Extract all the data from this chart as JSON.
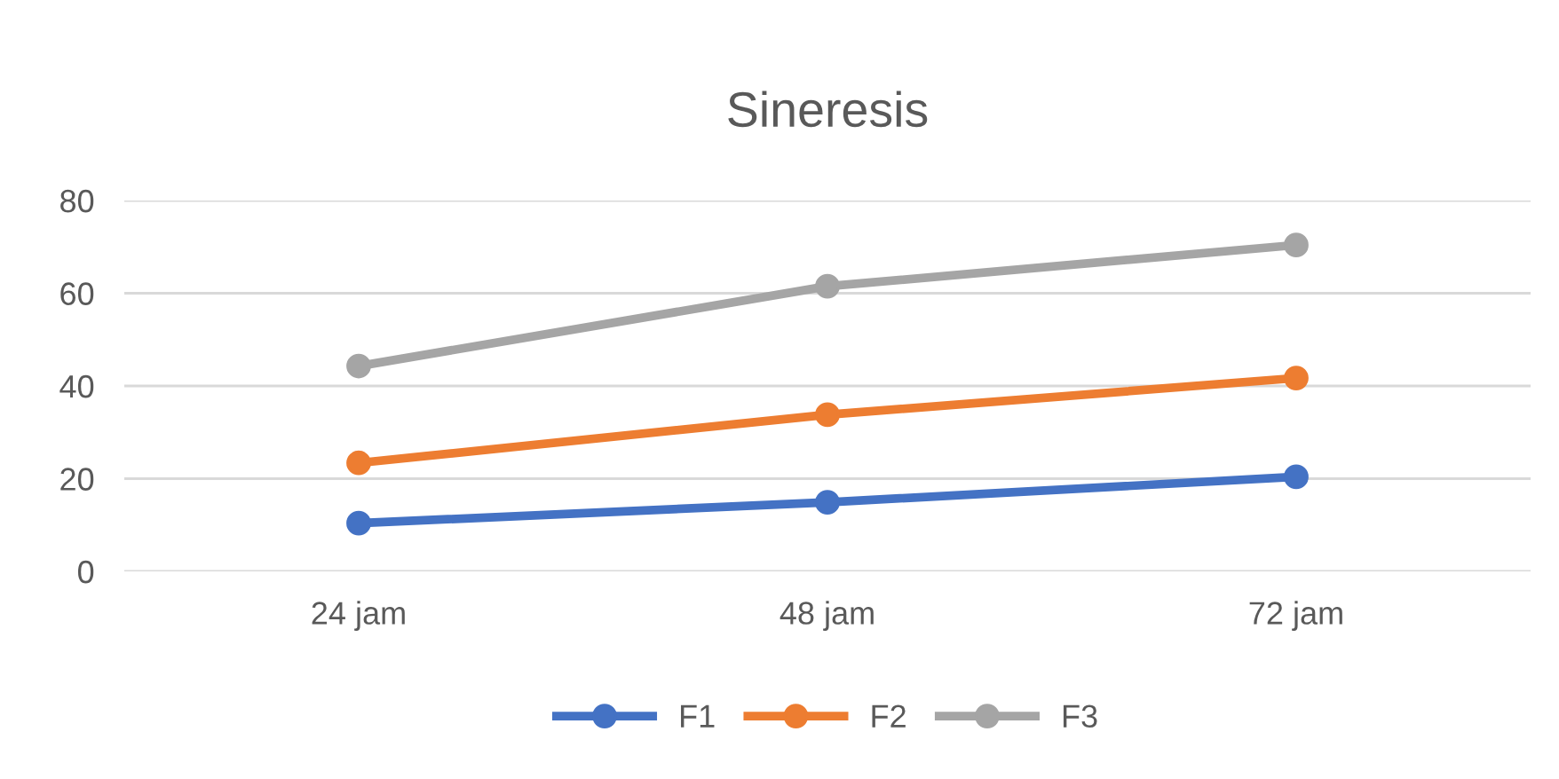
{
  "chart_data": {
    "type": "line",
    "title": "Sineresis",
    "categories": [
      "24 jam",
      "48 jam",
      "72 jam"
    ],
    "series": [
      {
        "name": "F1",
        "color": "#4472c4",
        "values": [
          10.4,
          14.9,
          20.4
        ]
      },
      {
        "name": "F2",
        "color": "#ed7d31",
        "values": [
          23.4,
          33.8,
          41.7
        ]
      },
      {
        "name": "F3",
        "color": "#a5a5a5",
        "values": [
          44.3,
          61.5,
          70.4
        ]
      }
    ],
    "ylim": [
      0,
      80
    ],
    "yticks": [
      0,
      20,
      40,
      60,
      80
    ],
    "grid": "y",
    "legend": "bottom",
    "marker": "circle",
    "line_style": "solid"
  }
}
